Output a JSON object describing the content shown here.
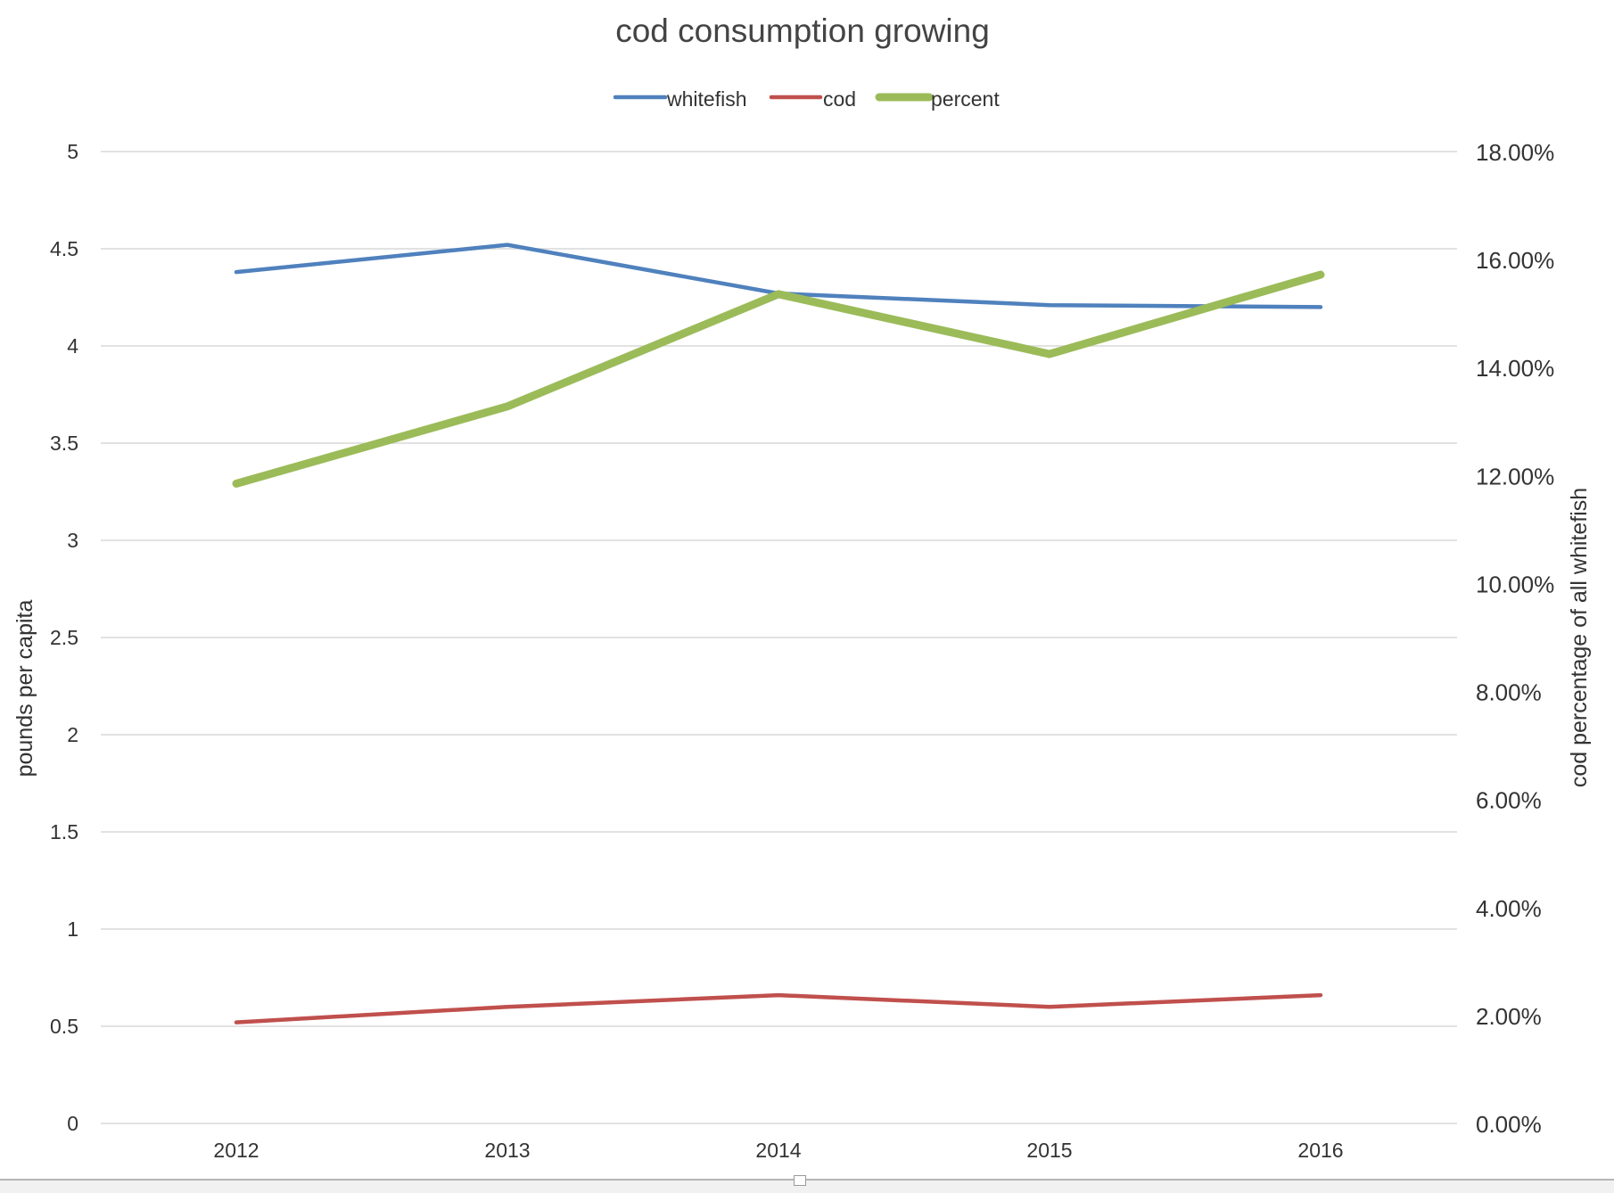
{
  "chart_data": {
    "type": "line",
    "title": "cod consumption growing",
    "categories": [
      "2012",
      "2013",
      "2014",
      "2015",
      "2016"
    ],
    "ylabel": "pounds per capita",
    "y2label": "cod percentage of all whitefish",
    "ylim": [
      0,
      5
    ],
    "y2lim": [
      0,
      0.18
    ],
    "yticks": [
      "0",
      "0.5",
      "1",
      "1.5",
      "2",
      "2.5",
      "3",
      "3.5",
      "4",
      "4.5",
      "5"
    ],
    "y2ticks": [
      "0.00%",
      "2.00%",
      "4.00%",
      "6.00%",
      "8.00%",
      "10.00%",
      "12.00%",
      "14.00%",
      "16.00%",
      "18.00%"
    ],
    "grid": true,
    "legend": "top",
    "series": [
      {
        "name": "whitefish",
        "axis": "left",
        "color": "#4f81bd",
        "values": [
          4.38,
          4.52,
          4.27,
          4.21,
          4.2
        ]
      },
      {
        "name": "cod",
        "axis": "left",
        "color": "#c0504d",
        "values": [
          0.52,
          0.6,
          0.66,
          0.6,
          0.66
        ]
      },
      {
        "name": "percent",
        "axis": "right",
        "color": "#9bbb59",
        "values": [
          0.1185,
          0.1328,
          0.1536,
          0.1425,
          0.1572
        ]
      }
    ]
  }
}
